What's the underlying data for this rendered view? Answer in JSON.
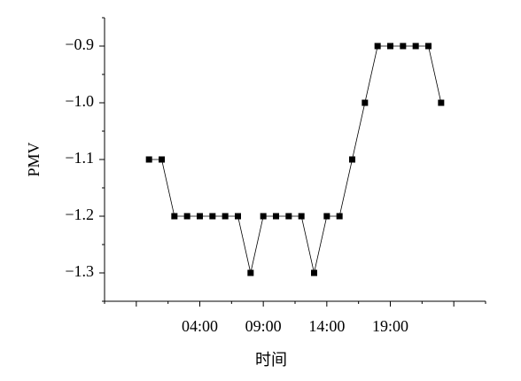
{
  "chart_data": {
    "type": "line",
    "y_label": "PMV",
    "x_label": "时间",
    "x": [
      0,
      1,
      2,
      3,
      4,
      5,
      6,
      7,
      8,
      9,
      10,
      11,
      12,
      13,
      14,
      15,
      16,
      17,
      18,
      19,
      20,
      21,
      22,
      23
    ],
    "values": [
      -1.1,
      -1.1,
      -1.2,
      -1.2,
      -1.2,
      -1.2,
      -1.2,
      -1.2,
      -1.3,
      -1.2,
      -1.2,
      -1.2,
      -1.2,
      -1.3,
      -1.2,
      -1.2,
      -1.1,
      -1.0,
      -0.9,
      -0.9,
      -0.9,
      -0.9,
      -0.9,
      -1.0
    ],
    "color": "#000000",
    "xlim": [
      -3.5,
      26.5
    ],
    "xticks": [
      {
        "value": 4,
        "label": "04:00"
      },
      {
        "value": 9,
        "label": "09:00"
      },
      {
        "value": 14,
        "label": "14:00"
      },
      {
        "value": 19,
        "label": "19:00"
      }
    ],
    "ylim": [
      -1.35,
      -0.85
    ],
    "yticks": [
      {
        "value": -1.3,
        "label": "−1.3"
      },
      {
        "value": -1.2,
        "label": "−1.2"
      },
      {
        "value": -1.1,
        "label": "−1.1"
      },
      {
        "value": -1.0,
        "label": "−1.0"
      },
      {
        "value": -0.9,
        "label": "−0.9"
      }
    ]
  }
}
